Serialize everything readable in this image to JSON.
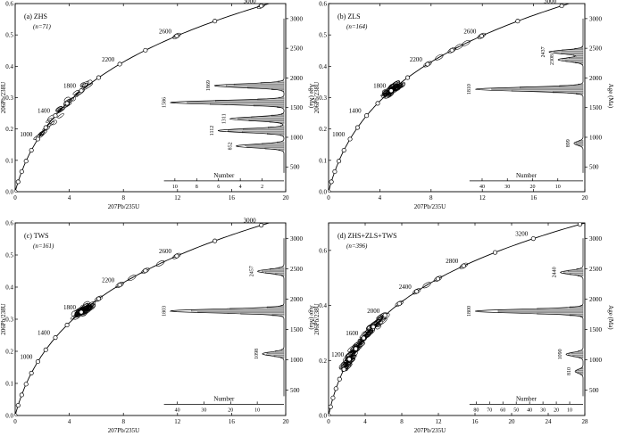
{
  "panels": [
    {
      "id": "a",
      "label": "(a) ZHS",
      "n": "(n=71)",
      "xlim": [
        0,
        20
      ],
      "ylim": [
        0,
        0.6
      ],
      "xticks": [
        0,
        4,
        8,
        12,
        16,
        20
      ],
      "yticks": [
        0.0,
        0.1,
        0.2,
        0.3,
        0.4,
        0.5,
        0.6
      ],
      "age_ticks": [
        1000,
        1400,
        1800,
        2200,
        2600,
        3000
      ],
      "ellipse_range": [
        1050,
        1900
      ],
      "extra_ellipses": [
        2600,
        3000
      ],
      "hist_age_lim": [
        400,
        3000
      ],
      "age_axis_ticks": [
        500,
        1000,
        1500,
        2000,
        2500,
        3000
      ],
      "number_ticks": [
        10,
        8,
        6,
        4,
        2
      ],
      "number_max": 11,
      "peaks": [
        {
          "age": 1869,
          "label": "1869",
          "height": 0.58
        },
        {
          "age": 1586,
          "label": "1586",
          "height": 0.95
        },
        {
          "age": 1311,
          "label": "1311",
          "height": 0.45
        },
        {
          "age": 1112,
          "label": "1112",
          "height": 0.55
        },
        {
          "age": 852,
          "label": "852",
          "height": 0.4
        }
      ]
    },
    {
      "id": "b",
      "label": "(b) ZLS",
      "n": "(n=164)",
      "xlim": [
        0,
        20
      ],
      "ylim": [
        0,
        0.6
      ],
      "xticks": [
        0,
        4,
        8,
        12,
        16,
        20
      ],
      "yticks": [
        0.0,
        0.1,
        0.2,
        0.3,
        0.4,
        0.5,
        0.6
      ],
      "age_ticks": [
        1000,
        1400,
        1800,
        2200,
        2600,
        3000
      ],
      "ellipse_range": [
        1750,
        1900
      ],
      "extra_ellipses": [
        2200,
        2300,
        2400,
        2450,
        2500,
        2600
      ],
      "hist_age_lim": [
        400,
        3000
      ],
      "age_axis_ticks": [
        500,
        1000,
        1500,
        2000,
        2500,
        3000
      ],
      "number_ticks": [
        40,
        30,
        20,
        10
      ],
      "number_max": 45,
      "peaks": [
        {
          "age": 2437,
          "label": "2437",
          "height": 0.3
        },
        {
          "age": 2308,
          "label": "2308",
          "height": 0.22
        },
        {
          "age": 1810,
          "label": "1810",
          "height": 0.95
        },
        {
          "age": 899,
          "label": "899",
          "height": 0.08
        }
      ]
    },
    {
      "id": "c",
      "label": "(c) TWS",
      "n": "(n=161)",
      "xlim": [
        0,
        20
      ],
      "ylim": [
        0,
        0.6
      ],
      "xticks": [
        0,
        4,
        8,
        12,
        16,
        20
      ],
      "yticks": [
        0.0,
        0.1,
        0.2,
        0.3,
        0.4,
        0.5,
        0.6
      ],
      "age_ticks": [
        1000,
        1400,
        1800,
        2200,
        2600,
        3000
      ],
      "ellipse_range": [
        1750,
        1900
      ],
      "extra_ellipses": [
        2000,
        2200,
        2300,
        2400,
        2500,
        2600
      ],
      "hist_age_lim": [
        400,
        3000
      ],
      "age_axis_ticks": [
        500,
        1000,
        1500,
        2000,
        2500,
        3000
      ],
      "number_ticks": [
        40,
        30,
        20,
        10
      ],
      "number_max": 45,
      "peaks": [
        {
          "age": 2457,
          "label": "2457",
          "height": 0.22
        },
        {
          "age": 1803,
          "label": "1803",
          "height": 0.95
        },
        {
          "age": 1098,
          "label": "1098",
          "height": 0.18
        }
      ]
    },
    {
      "id": "d",
      "label": "(d) ZHS+ZLS+TWS",
      "n": "(n=396)",
      "xlim": [
        0,
        28
      ],
      "ylim": [
        0,
        0.7
      ],
      "xticks": [
        0,
        4,
        8,
        12,
        16,
        20,
        24,
        28
      ],
      "yticks": [
        0.0,
        0.2,
        0.4,
        0.6
      ],
      "age_ticks": [
        1200,
        1600,
        2000,
        2400,
        2800,
        3200
      ],
      "ellipse_range": [
        1000,
        2000
      ],
      "extra_ellipses": [
        2200,
        2400,
        2500,
        2600,
        2800
      ],
      "hist_age_lim": [
        400,
        3000
      ],
      "age_axis_ticks": [
        500,
        1000,
        1500,
        2000,
        2500,
        3000
      ],
      "number_ticks": [
        80,
        70,
        60,
        50,
        40,
        30,
        20,
        10
      ],
      "number_max": 85,
      "peaks": [
        {
          "age": 2440,
          "label": "2440",
          "height": 0.2
        },
        {
          "age": 1800,
          "label": "1800",
          "height": 0.95
        },
        {
          "age": 1090,
          "label": "1090",
          "height": 0.15
        },
        {
          "age": 810,
          "label": "810",
          "height": 0.07
        }
      ]
    }
  ],
  "axis_labels": {
    "x": "207Pb/235U",
    "y": "206Pb/238U",
    "age": "Age (Ma)",
    "number": "Number"
  },
  "chart_data": [
    {
      "type": "scatter",
      "title": "(a) ZHS",
      "xlabel": "207Pb/235U",
      "ylabel": "206Pb/238U",
      "xlim": [
        0,
        20
      ],
      "ylim": [
        0,
        0.6
      ],
      "n": 71,
      "concordia_age_labels": [
        1000,
        1400,
        1800,
        2200,
        2600,
        3000
      ],
      "histogram": {
        "age_axis": "Age (Ma)",
        "age_range": [
          500,
          3000
        ],
        "number_axis": [
          10,
          8,
          6,
          4,
          2
        ]
      },
      "peak_ages": [
        1869,
        1586,
        1311,
        1112,
        852
      ]
    },
    {
      "type": "scatter",
      "title": "(b) ZLS",
      "xlabel": "207Pb/235U",
      "ylabel": "206Pb/238U",
      "xlim": [
        0,
        20
      ],
      "ylim": [
        0,
        0.6
      ],
      "n": 164,
      "concordia_age_labels": [
        1000,
        1400,
        1800,
        2200,
        2600,
        3000
      ],
      "histogram": {
        "age_axis": "Age (Ma)",
        "age_range": [
          500,
          3000
        ],
        "number_axis": [
          40,
          30,
          20,
          10
        ]
      },
      "peak_ages": [
        2437,
        2308,
        1810,
        899
      ]
    },
    {
      "type": "scatter",
      "title": "(c) TWS",
      "xlabel": "207Pb/235U",
      "ylabel": "206Pb/238U",
      "xlim": [
        0,
        20
      ],
      "ylim": [
        0,
        0.6
      ],
      "n": 161,
      "concordia_age_labels": [
        1000,
        1400,
        1800,
        2200,
        2600,
        3000
      ],
      "histogram": {
        "age_axis": "Age (Ma)",
        "age_range": [
          500,
          3000
        ],
        "number_axis": [
          40,
          30,
          20,
          10
        ]
      },
      "peak_ages": [
        2457,
        1803,
        1098
      ]
    },
    {
      "type": "scatter",
      "title": "(d) ZHS+ZLS+TWS",
      "xlabel": "207Pb/235U",
      "ylabel": "206Pb/238U",
      "xlim": [
        0,
        28
      ],
      "ylim": [
        0,
        0.7
      ],
      "n": 396,
      "concordia_age_labels": [
        1200,
        1600,
        2000,
        2400,
        2800,
        3200
      ],
      "histogram": {
        "age_axis": "Age (Ma)",
        "age_range": [
          500,
          3000
        ],
        "number_axis": [
          80,
          70,
          60,
          50,
          40,
          30,
          20,
          10
        ]
      },
      "peak_ages": [
        2440,
        1800,
        1090,
        810
      ]
    }
  ]
}
